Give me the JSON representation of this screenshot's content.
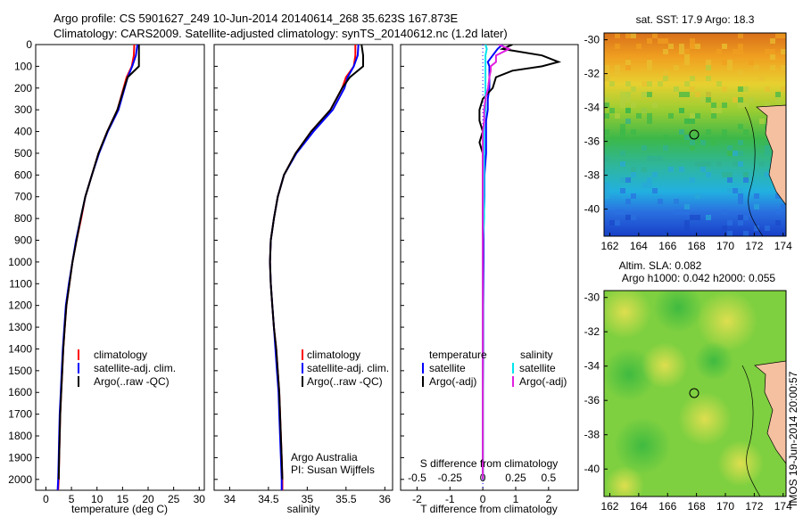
{
  "header": {
    "line1": "Argo profile: CS 5901627_249 10-Jun-2014 20140614_268 35.623S 167.873E",
    "line2": "Climatology: CARS2009. Satellite-adjusted climatology: synTS_20140612.nc (1.2d later)"
  },
  "depth_ticks": [
    "0",
    "100",
    "200",
    "300",
    "400",
    "500",
    "600",
    "700",
    "800",
    "900",
    "1000",
    "1100",
    "1200",
    "1300",
    "1400",
    "1500",
    "1600",
    "1700",
    "1800",
    "1900",
    "2000"
  ],
  "temperature_panel": {
    "xlabel": "temperature (deg C)",
    "xticks": [
      "0",
      "5",
      "10",
      "15",
      "20",
      "25",
      "30"
    ],
    "legend": [
      "climatology",
      "satellite-adj. clim.",
      "Argo(..raw -QC)"
    ]
  },
  "salinity_panel": {
    "xlabel": "salinity",
    "xticks": [
      "34",
      "34.5",
      "35",
      "35.5",
      "36"
    ],
    "legend": [
      "climatology",
      "satellite-adj. clim.",
      "Argo(..raw -QC)"
    ],
    "credit1": "Argo Australia",
    "credit2": "PI: Susan Wijffels"
  },
  "difference_panel": {
    "xlabel_top": "S difference from climatology",
    "xlabel_bottom": "T difference from climatology",
    "xticks_t": [
      "-2",
      "-1",
      "0",
      "1",
      "2"
    ],
    "xticks_s": [
      "-0.5",
      "-0.25",
      "0",
      "0.25",
      "0.5"
    ],
    "legend_t_title": "temperature",
    "legend_t": [
      "satellite",
      "Argo(-adj)"
    ],
    "legend_s_title": "salinity",
    "legend_s": [
      "satellite",
      "Argo(-adj)"
    ]
  },
  "map_sst": {
    "title": "sat. SST: 17.9 Argo: 18.3",
    "yticks": [
      "-30",
      "-32",
      "-34",
      "-36",
      "-38",
      "-40"
    ],
    "xticks": [
      "162",
      "164",
      "166",
      "168",
      "170",
      "172",
      "174"
    ]
  },
  "map_sla": {
    "title1": "Altim. SLA: 0.082",
    "title2": "Argo h1000: 0.042 h2000: 0.055",
    "yticks": [
      "-30",
      "-32",
      "-34",
      "-36",
      "-38",
      "-40"
    ],
    "xticks": [
      "162",
      "164",
      "166",
      "168",
      "170",
      "172",
      "174"
    ]
  },
  "watermark": "IMOS 19-Jun-2014 20:00:57",
  "colors": {
    "climatology": "#ff0000",
    "satellite": "#0000ff",
    "argo": "#000000",
    "sal_satellite": "#00e5ee",
    "sal_argo": "#e020e0"
  },
  "chart_data": [
    {
      "type": "line",
      "title": "",
      "xlabel": "temperature (deg C)",
      "ylabel": "",
      "xlim": [
        -2,
        31
      ],
      "ylim": [
        2050,
        0
      ],
      "depth": [
        0,
        50,
        100,
        150,
        200,
        300,
        400,
        500,
        600,
        700,
        800,
        900,
        1000,
        1100,
        1200,
        1300,
        1400,
        1500,
        1600,
        1700,
        1800,
        1900,
        2000,
        2050
      ],
      "series": [
        {
          "name": "climatology",
          "color": "#ff0000",
          "values": [
            17.3,
            17.2,
            16.8,
            15.8,
            15.2,
            14.0,
            12.0,
            10.3,
            9.0,
            7.7,
            6.9,
            6.0,
            5.2,
            4.6,
            4.0,
            3.7,
            3.4,
            3.2,
            3.0,
            2.8,
            2.7,
            2.6,
            2.5,
            2.4
          ]
        },
        {
          "name": "satellite-adj. clim.",
          "color": "#0000ff",
          "values": [
            17.9,
            17.6,
            16.9,
            16.0,
            15.4,
            14.2,
            12.1,
            10.4,
            9.0,
            7.7,
            6.8,
            5.9,
            5.2,
            4.5,
            3.9,
            3.6,
            3.3,
            3.1,
            2.9,
            2.7,
            2.6,
            2.5,
            2.4,
            2.3
          ]
        },
        {
          "name": "Argo(..raw -QC)",
          "color": "#000000",
          "values": [
            18.2,
            18.2,
            18.2,
            16.0,
            15.3,
            14.0,
            12.0,
            10.3,
            9.0,
            7.7,
            6.8,
            6.0,
            5.2,
            4.6,
            4.0,
            3.7,
            3.4,
            3.2,
            3.0,
            2.8,
            2.7,
            2.6,
            2.5,
            null
          ]
        }
      ]
    },
    {
      "type": "line",
      "xlabel": "salinity",
      "xlim": [
        33.8,
        36.1
      ],
      "ylim": [
        2050,
        0
      ],
      "depth": [
        0,
        50,
        100,
        150,
        200,
        300,
        400,
        500,
        600,
        700,
        800,
        900,
        1000,
        1100,
        1200,
        1300,
        1400,
        1500,
        1600,
        1700,
        1800,
        1900,
        2000,
        2050
      ],
      "series": [
        {
          "name": "climatology",
          "color": "#ff0000",
          "values": [
            35.62,
            35.62,
            35.6,
            35.5,
            35.45,
            35.3,
            35.05,
            34.85,
            34.7,
            34.62,
            34.57,
            34.53,
            34.52,
            34.53,
            34.55,
            34.57,
            34.6,
            34.62,
            34.64,
            34.65,
            34.66,
            34.67,
            34.68,
            34.68
          ]
        },
        {
          "name": "satellite-adj. clim.",
          "color": "#0000ff",
          "values": [
            35.66,
            35.65,
            35.6,
            35.52,
            35.48,
            35.33,
            35.08,
            34.86,
            34.7,
            34.62,
            34.57,
            34.53,
            34.52,
            34.53,
            34.55,
            34.57,
            34.59,
            34.61,
            34.63,
            34.64,
            34.65,
            34.66,
            34.67,
            34.67
          ]
        },
        {
          "name": "Argo(..raw -QC)",
          "color": "#000000",
          "values": [
            35.7,
            35.72,
            35.72,
            35.55,
            35.45,
            35.3,
            35.05,
            34.85,
            34.7,
            34.62,
            34.57,
            34.53,
            34.52,
            34.53,
            34.55,
            34.57,
            34.6,
            34.62,
            34.64,
            34.65,
            34.66,
            34.67,
            34.68,
            null
          ]
        }
      ]
    },
    {
      "type": "line",
      "xlabel": "T difference from climatology",
      "xlim_t": [
        -2.5,
        2.9
      ],
      "xlim_s": [
        -0.625,
        0.725
      ],
      "ylim": [
        2050,
        0
      ],
      "depth": [
        0,
        20,
        50,
        80,
        100,
        120,
        150,
        200,
        250,
        300,
        350,
        400,
        450,
        500,
        600,
        700,
        800,
        900,
        1000,
        1200,
        1400,
        1600,
        1800,
        2000
      ],
      "series": [
        {
          "name": "temperature satellite",
          "axis": "T",
          "color": "#0000ff",
          "values": [
            0.6,
            0.45,
            0.3,
            0.15,
            0.2,
            0.2,
            0.2,
            0.2,
            0.15,
            0.15,
            0.1,
            0.1,
            0.1,
            0.1,
            0.05,
            0.05,
            0.03,
            0.02,
            0.02,
            0.01,
            0.01,
            0.0,
            0.0,
            0.0
          ]
        },
        {
          "name": "temperature Argo(-adj)",
          "axis": "T",
          "color": "#000000",
          "values": [
            0.9,
            0.6,
            1.8,
            2.3,
            1.8,
            0.9,
            0.4,
            0.3,
            0.0,
            -0.1,
            -0.1,
            0.0,
            -0.1,
            0.0,
            0.0,
            0.0,
            0.0,
            0.0,
            0.0,
            0.0,
            0.0,
            0.0,
            0.0,
            0.0
          ]
        },
        {
          "name": "salinity satellite",
          "axis": "S",
          "color": "#00e5ee",
          "values": [
            0.02,
            0.03,
            0.02,
            0.02,
            0.02,
            0.02,
            0.02,
            0.02,
            0.02,
            0.02,
            0.01,
            0.01,
            0.01,
            0.01,
            0.01,
            0.01,
            0.01,
            0.0,
            0.0,
            0.0,
            0.0,
            0.0,
            0.0,
            0.0
          ]
        },
        {
          "name": "salinity Argo(-adj)",
          "axis": "S",
          "color": "#e020e0",
          "values": [
            0.12,
            0.2,
            0.1,
            0.1,
            0.06,
            0.06,
            0.05,
            0.04,
            0.02,
            0.01,
            0.01,
            0.0,
            0.0,
            0.0,
            0.0,
            0.0,
            0.0,
            0.0,
            0.0,
            0.0,
            0.0,
            0.0,
            0.0,
            0.0
          ]
        }
      ]
    },
    {
      "type": "heatmap",
      "title": "sat. SST: 17.9 Argo: 18.3",
      "xlim": [
        161.6,
        174.2
      ],
      "ylim": [
        -41.6,
        -29.6
      ],
      "argo_lon": 167.873,
      "argo_lat": -35.623
    },
    {
      "type": "heatmap",
      "title": "Altim. SLA: 0.082",
      "xlim": [
        161.6,
        174.2
      ],
      "ylim": [
        -41.6,
        -29.6
      ],
      "argo_lon": 167.873,
      "argo_lat": -35.623
    }
  ]
}
